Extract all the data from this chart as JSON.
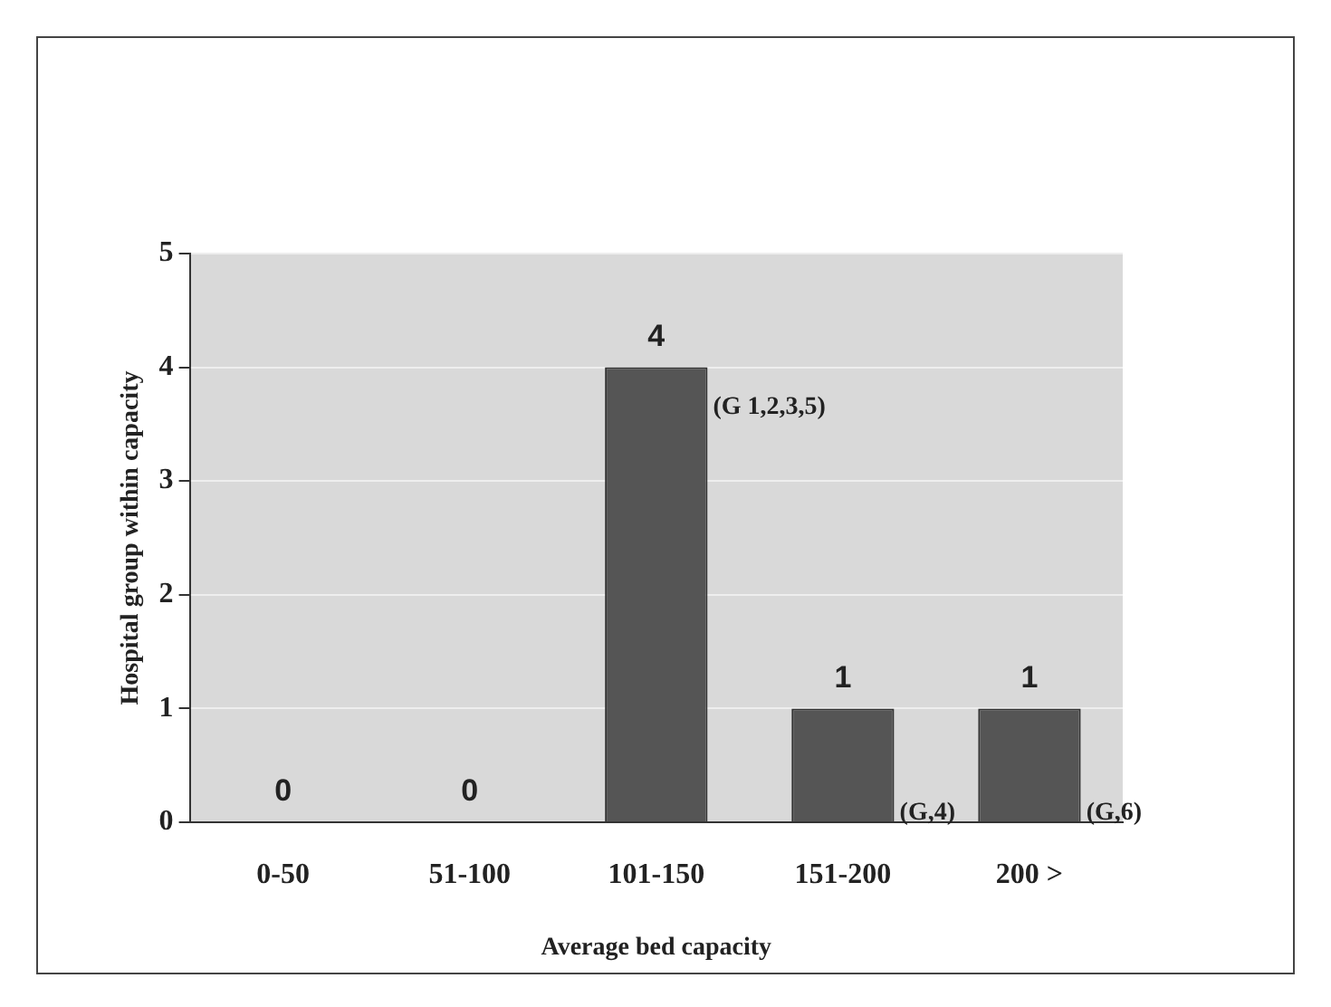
{
  "chart_data": {
    "type": "bar",
    "xlabel": "Average bed capacity",
    "ylabel": "Hospital group within capacity",
    "categories": [
      "0-50",
      "51-100",
      "101-150",
      "151-200",
      "200 >"
    ],
    "values": [
      0,
      0,
      4,
      1,
      1
    ],
    "color": "#555555",
    "ylim": [
      0,
      5
    ],
    "yticks": [
      0,
      1,
      2,
      3,
      4,
      5
    ],
    "grid": "y",
    "data_labels": true,
    "annotations": [
      {
        "text": "(G 1,2,3,5)",
        "x": "101-150",
        "y": 4
      },
      {
        "text": "(G,4)",
        "x": "151-200",
        "y": 0
      },
      {
        "text": "(G,6)",
        "x": "200 >",
        "y": 0
      }
    ]
  }
}
